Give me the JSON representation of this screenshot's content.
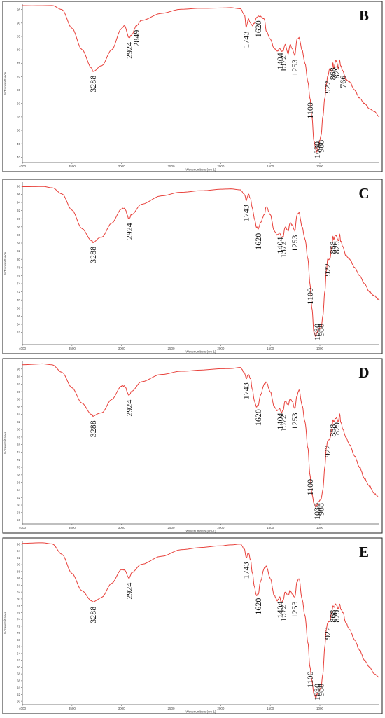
{
  "colors": {
    "line": "#e8413b",
    "axis": "#555555",
    "text": "#111111"
  },
  "chart_data": [
    {
      "type": "line",
      "panel": "B",
      "xlabel": "Wavenumbers (cm-1)",
      "ylabel": "%Transmittance",
      "xlim": [
        4000,
        400
      ],
      "ylim": [
        38,
        97
      ],
      "x_ticks": [
        4000,
        3500,
        3000,
        2500,
        2000,
        1500,
        1000
      ],
      "y_ticks": [
        40,
        45,
        50,
        55,
        60,
        65,
        70,
        75,
        80,
        85,
        90,
        95
      ],
      "x": [
        4000,
        3700,
        3600,
        3500,
        3400,
        3300,
        3288,
        3200,
        3100,
        3000,
        2970,
        2924,
        2900,
        2849,
        2800,
        2600,
        2400,
        2200,
        2000,
        1900,
        1800,
        1760,
        1743,
        1720,
        1700,
        1680,
        1660,
        1640,
        1620,
        1600,
        1560,
        1540,
        1500,
        1460,
        1430,
        1404,
        1390,
        1372,
        1350,
        1320,
        1300,
        1280,
        1253,
        1230,
        1210,
        1180,
        1150,
        1120,
        1100,
        1080,
        1060,
        1040,
        1030,
        1010,
        988,
        970,
        950,
        935,
        922,
        900,
        880,
        868,
        860,
        840,
        829,
        815,
        800,
        790,
        766,
        740,
        700,
        650,
        600,
        550,
        500,
        450,
        400
      ],
      "y": [
        96.5,
        96.6,
        95,
        88,
        80,
        73,
        72,
        74,
        80,
        88,
        89,
        84.5,
        85.5,
        89,
        91,
        93.5,
        95,
        95.5,
        95.7,
        95.8,
        95.3,
        93,
        88.5,
        91.5,
        90,
        89,
        90,
        92,
        92.5,
        92.5,
        91.5,
        87,
        84,
        80.5,
        79.5,
        80.5,
        79.5,
        79.5,
        82,
        78.5,
        82,
        80.5,
        78,
        84,
        84.5,
        80,
        75,
        68,
        62,
        55,
        46,
        43,
        42,
        45,
        48,
        55,
        62,
        67,
        70,
        73,
        72,
        75,
        73,
        76,
        75.5,
        73,
        76,
        74,
        72,
        69,
        68,
        65,
        62,
        60,
        58,
        57,
        55
      ],
      "annotations": [
        "3288",
        "2924",
        "2849",
        "1743",
        "1620",
        "1404",
        "1372",
        "1253",
        "1100",
        "1030",
        "988",
        "922",
        "868",
        "829",
        "766"
      ]
    },
    {
      "type": "line",
      "panel": "C",
      "xlabel": "Wavenumbers (cm-1)",
      "ylabel": "%Transmittance",
      "xlim": [
        4000,
        400
      ],
      "ylim": [
        59,
        99
      ],
      "x_ticks": [
        4000,
        3500,
        3000,
        2500,
        2000,
        1500,
        1000
      ],
      "y_ticks": [
        62,
        64,
        66,
        68,
        70,
        72,
        74,
        76,
        78,
        80,
        82,
        84,
        86,
        88,
        90,
        92,
        94,
        96,
        98
      ],
      "x": [
        4000,
        3800,
        3700,
        3600,
        3500,
        3400,
        3300,
        3288,
        3200,
        3100,
        3000,
        2970,
        2924,
        2900,
        2800,
        2600,
        2400,
        2200,
        2000,
        1900,
        1800,
        1760,
        1743,
        1720,
        1700,
        1680,
        1660,
        1640,
        1620,
        1600,
        1560,
        1540,
        1500,
        1460,
        1430,
        1404,
        1390,
        1372,
        1350,
        1320,
        1300,
        1280,
        1253,
        1230,
        1210,
        1180,
        1150,
        1120,
        1100,
        1080,
        1060,
        1040,
        1030,
        1010,
        988,
        970,
        950,
        935,
        922,
        900,
        880,
        868,
        860,
        840,
        829,
        815,
        800,
        790,
        766,
        740,
        700,
        650,
        600,
        550,
        500,
        450,
        400
      ],
      "y": [
        98,
        98,
        97.6,
        96,
        92,
        87.5,
        84.5,
        84.2,
        85.5,
        89,
        92.5,
        92.5,
        90,
        91,
        93.5,
        95.5,
        96.5,
        97,
        97.3,
        97.3,
        97,
        96,
        94.5,
        96,
        95,
        92.5,
        90,
        88,
        87.5,
        89,
        91,
        93,
        91,
        87,
        86,
        86.5,
        85.5,
        85.5,
        88,
        87,
        89,
        88.5,
        87,
        91,
        91.5,
        88,
        85,
        80,
        74,
        68,
        62,
        61,
        62,
        63,
        63,
        66,
        72,
        77,
        80,
        80,
        83,
        85.5,
        85,
        86,
        85.5,
        84.5,
        86,
        84.5,
        83,
        81,
        80,
        78,
        76,
        74,
        72,
        71,
        70
      ],
      "annotations": [
        "3288",
        "2924",
        "1743",
        "1620",
        "1404",
        "1372",
        "1253",
        "1100",
        "1030",
        "988",
        "922",
        "868",
        "829"
      ]
    },
    {
      "type": "line",
      "panel": "D",
      "xlabel": "Wavenumbers (cm-1)",
      "ylabel": "%Transmittance",
      "xlim": [
        4000,
        400
      ],
      "ylim": [
        55,
        98
      ],
      "x_ticks": [
        4000,
        3500,
        3000,
        2500,
        2000,
        1500,
        1000
      ],
      "y_ticks": [
        56,
        58,
        60,
        62,
        64,
        66,
        68,
        70,
        72,
        74,
        76,
        78,
        80,
        82,
        84,
        86,
        88,
        90,
        92,
        94,
        96
      ],
      "x": [
        4000,
        3800,
        3700,
        3600,
        3500,
        3400,
        3300,
        3288,
        3200,
        3100,
        3000,
        2970,
        2924,
        2900,
        2800,
        2600,
        2400,
        2200,
        2000,
        1900,
        1800,
        1760,
        1743,
        1720,
        1700,
        1680,
        1660,
        1640,
        1620,
        1600,
        1560,
        1540,
        1500,
        1460,
        1430,
        1404,
        1390,
        1372,
        1350,
        1320,
        1300,
        1280,
        1253,
        1230,
        1210,
        1180,
        1150,
        1120,
        1100,
        1080,
        1060,
        1040,
        1030,
        1010,
        988,
        970,
        950,
        935,
        922,
        900,
        880,
        868,
        860,
        840,
        829,
        815,
        800,
        790,
        766,
        740,
        700,
        650,
        600,
        550,
        500,
        450,
        400
      ],
      "y": [
        97.2,
        97.3,
        97,
        95,
        91,
        87,
        84,
        83.5,
        84.5,
        88,
        91.5,
        91.5,
        89,
        90,
        92.5,
        94.5,
        95.5,
        95.8,
        96,
        96,
        96.3,
        95,
        93.5,
        94.5,
        93.5,
        90.5,
        87.5,
        86,
        86.5,
        89,
        92,
        92.5,
        90,
        86,
        85,
        85.5,
        84.5,
        85,
        87.5,
        86.5,
        88,
        87.5,
        85.5,
        89,
        90.5,
        86.5,
        82,
        75,
        68,
        63,
        60.5,
        59.5,
        60,
        61,
        61.5,
        64,
        70,
        75,
        77,
        77.5,
        80,
        82.5,
        82,
        83,
        83,
        82,
        84,
        82,
        80,
        78,
        76,
        73,
        70,
        67,
        65,
        63,
        62
      ],
      "annotations": [
        "3288",
        "2924",
        "1743",
        "1620",
        "1404",
        "1372",
        "1253",
        "1100",
        "1030",
        "988",
        "922",
        "868",
        "829"
      ]
    },
    {
      "type": "line",
      "panel": "E",
      "xlabel": "Wavenumbers (cm-1)",
      "ylabel": "%Transmittance",
      "xlim": [
        4000,
        400
      ],
      "ylim": [
        49,
        97
      ],
      "x_ticks": [
        4000,
        3500,
        3000,
        2500,
        2000,
        1500,
        1000
      ],
      "y_ticks": [
        50,
        52,
        54,
        56,
        58,
        60,
        62,
        64,
        66,
        68,
        70,
        72,
        74,
        76,
        78,
        80,
        82,
        84,
        86,
        88,
        90,
        92,
        94,
        96
      ],
      "x": [
        4000,
        3800,
        3700,
        3600,
        3500,
        3400,
        3300,
        3288,
        3200,
        3100,
        3000,
        2970,
        2924,
        2900,
        2800,
        2600,
        2400,
        2200,
        2000,
        1900,
        1800,
        1760,
        1743,
        1720,
        1700,
        1680,
        1660,
        1640,
        1620,
        1600,
        1560,
        1540,
        1500,
        1460,
        1430,
        1404,
        1390,
        1372,
        1350,
        1320,
        1300,
        1280,
        1253,
        1230,
        1210,
        1180,
        1150,
        1120,
        1100,
        1080,
        1060,
        1040,
        1030,
        1010,
        988,
        970,
        950,
        935,
        922,
        900,
        880,
        868,
        860,
        840,
        829,
        815,
        800,
        790,
        766,
        740,
        700,
        650,
        600,
        550,
        500,
        450,
        400
      ],
      "y": [
        96.2,
        96.3,
        96,
        93,
        87.5,
        82.5,
        79.5,
        79,
        80.5,
        84.5,
        88.5,
        88.5,
        86,
        87.5,
        90,
        92.5,
        94.5,
        95,
        95.4,
        95.7,
        96,
        94.5,
        92,
        93.5,
        91.5,
        87.5,
        83.5,
        81,
        81.5,
        85,
        89,
        89.5,
        86,
        81,
        79.5,
        80.5,
        79,
        79.5,
        82,
        81,
        82.5,
        81.5,
        80.5,
        85,
        86,
        80,
        75,
        67,
        60,
        56,
        52,
        51,
        52,
        53,
        54,
        58,
        66,
        71,
        73,
        73.5,
        76,
        78,
        77.5,
        78.5,
        78,
        77,
        78.5,
        77,
        76,
        73,
        71,
        68,
        65,
        62,
        60,
        58,
        57
      ],
      "annotations": [
        "3288",
        "2924",
        "1743",
        "1620",
        "1404",
        "1372",
        "1253",
        "1100",
        "1030",
        "988",
        "922",
        "868",
        "829"
      ]
    }
  ]
}
